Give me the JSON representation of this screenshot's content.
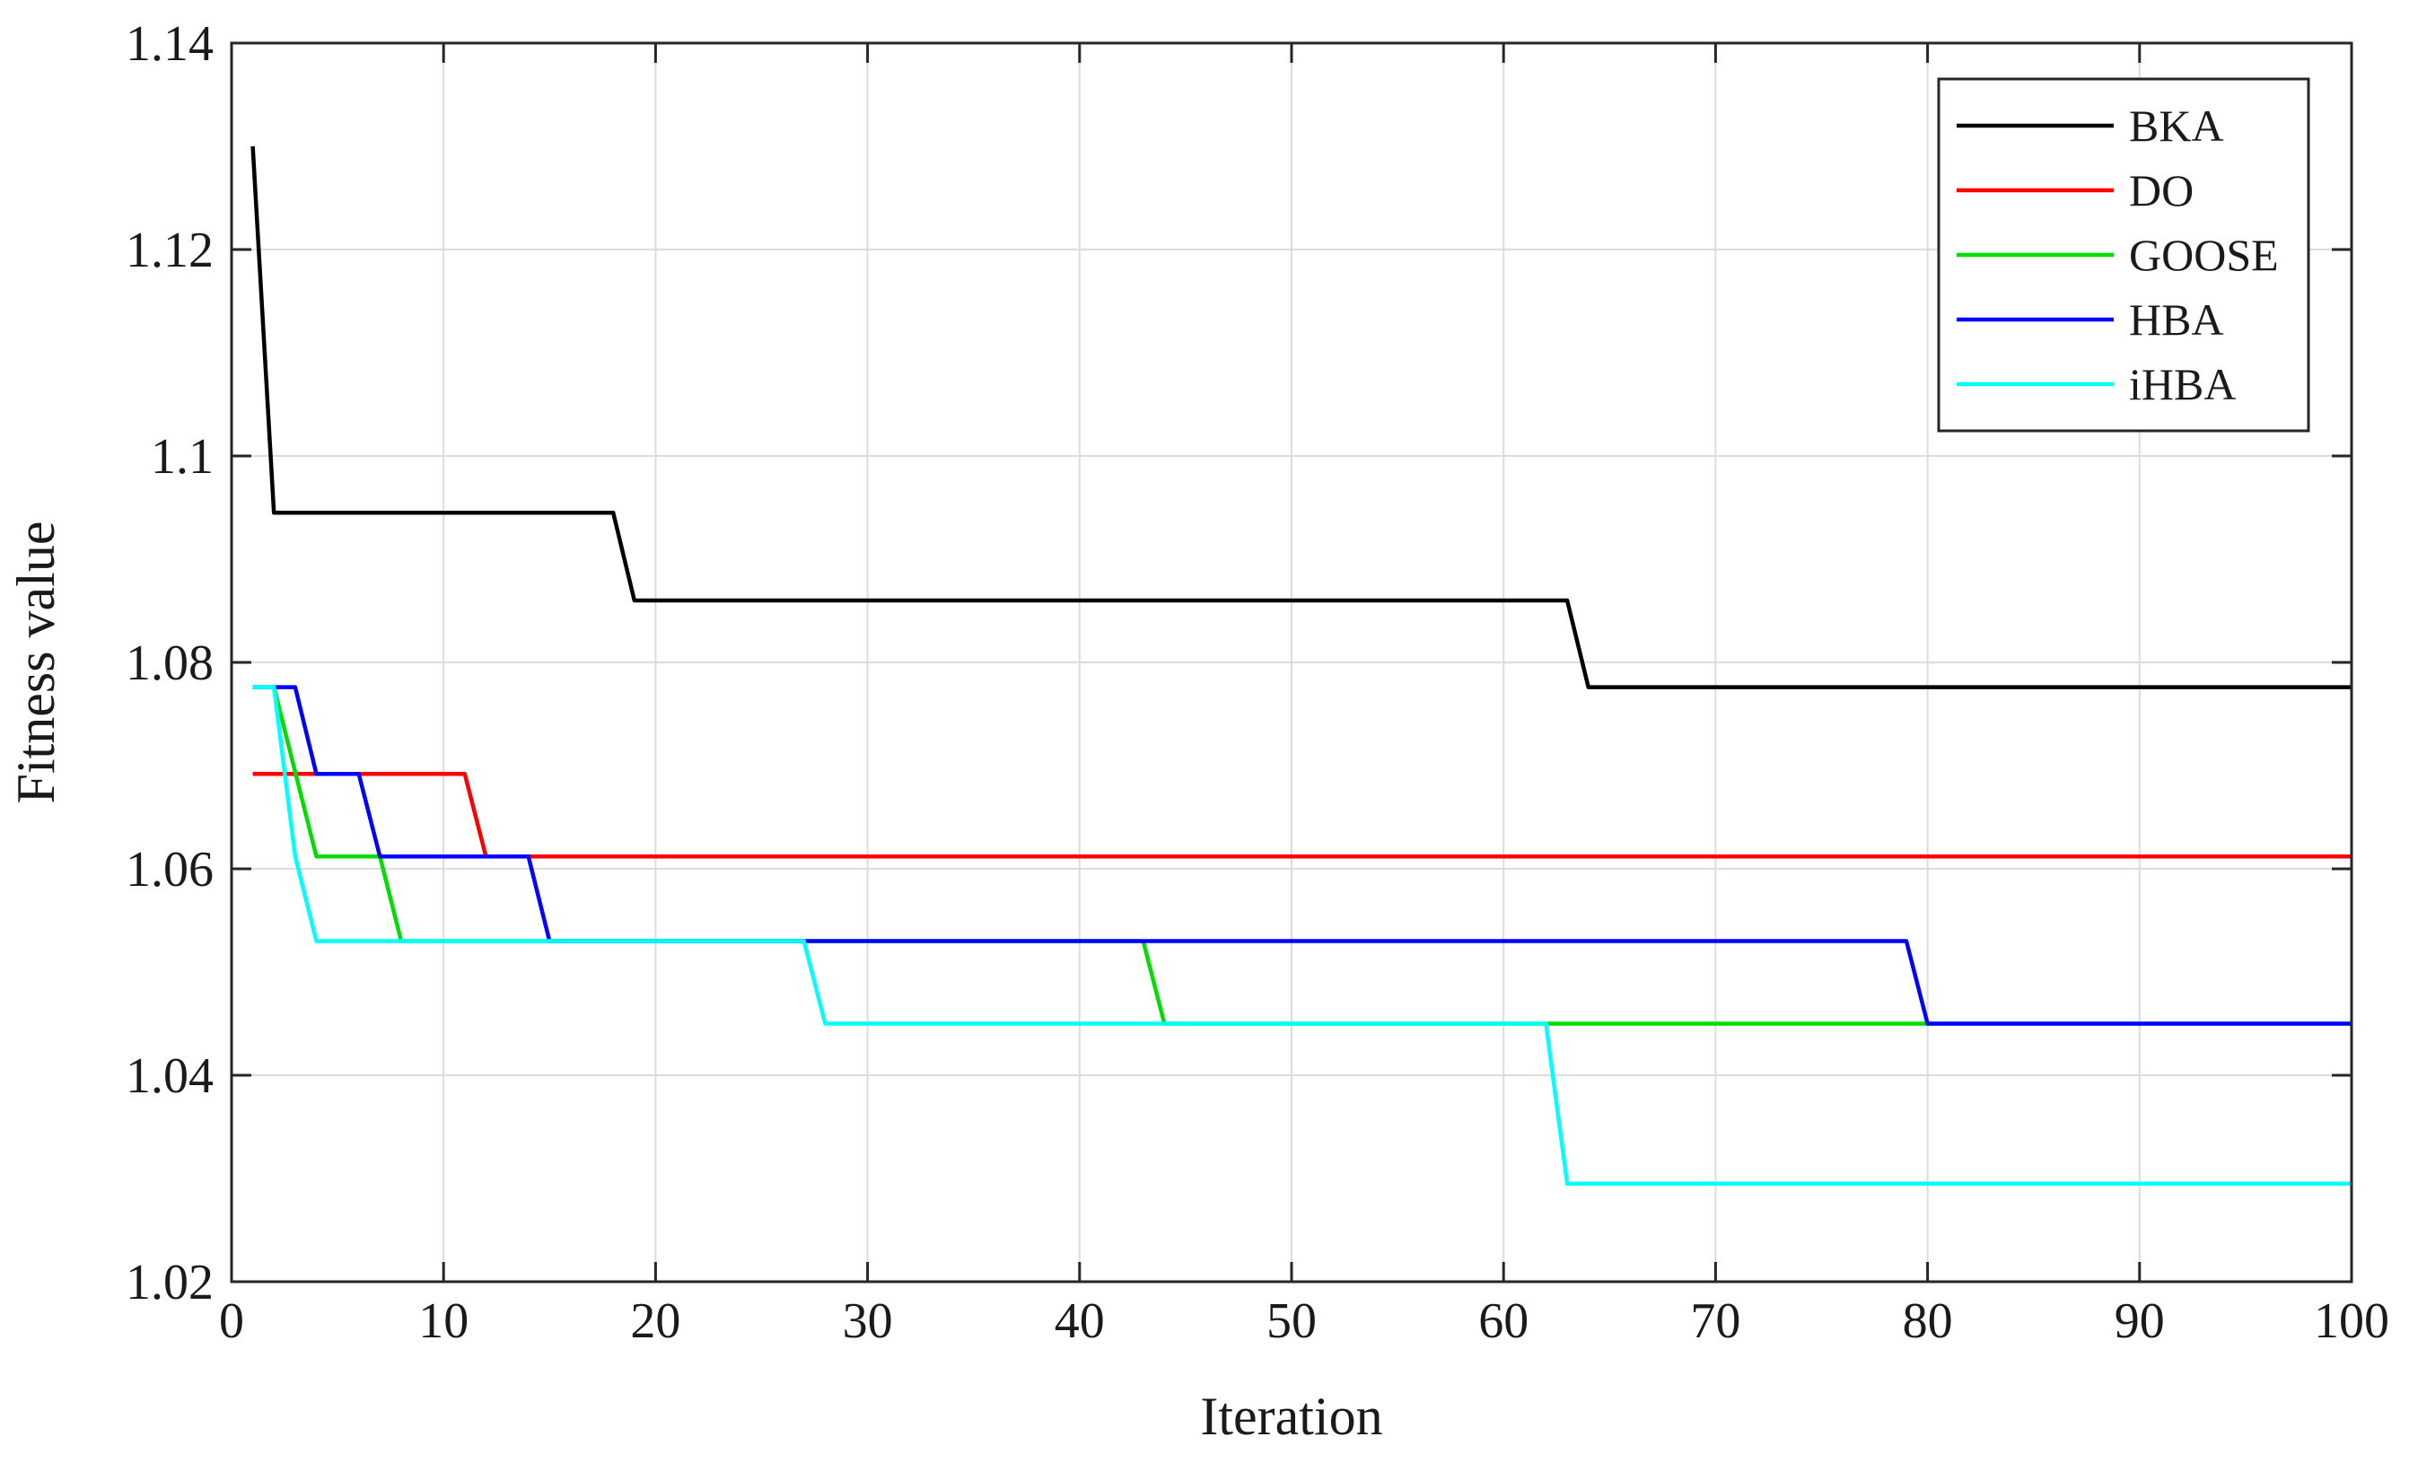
{
  "chart_data": {
    "type": "line",
    "xlabel": "Iteration",
    "ylabel": "Fitness value",
    "xlim": [
      0,
      100
    ],
    "ylim": [
      1.02,
      1.14
    ],
    "xticks": [
      0,
      10,
      20,
      30,
      40,
      50,
      60,
      70,
      80,
      90,
      100
    ],
    "yticks": [
      1.02,
      1.04,
      1.06,
      1.08,
      1.1,
      1.12,
      1.14
    ],
    "xtick_labels": [
      "0",
      "10",
      "20",
      "30",
      "40",
      "50",
      "60",
      "70",
      "80",
      "90",
      "100"
    ],
    "ytick_labels": [
      "1.02",
      "1.04",
      "1.06",
      "1.08",
      "1.1",
      "1.12",
      "1.14"
    ],
    "grid": true,
    "legend_position": "top-right",
    "series": [
      {
        "name": "BKA",
        "color": "#000000",
        "points": [
          [
            1,
            1.13
          ],
          [
            2,
            1.0945
          ],
          [
            18,
            1.0945
          ],
          [
            19,
            1.086
          ],
          [
            63,
            1.086
          ],
          [
            64,
            1.0776
          ],
          [
            100,
            1.0776
          ]
        ]
      },
      {
        "name": "DO",
        "color": "#ff0000",
        "points": [
          [
            1,
            1.0692
          ],
          [
            11,
            1.0692
          ],
          [
            12,
            1.0612
          ],
          [
            100,
            1.0612
          ]
        ]
      },
      {
        "name": "GOOSE",
        "color": "#00dd00",
        "points": [
          [
            1,
            1.0776
          ],
          [
            2,
            1.0776
          ],
          [
            4,
            1.0612
          ],
          [
            7,
            1.0612
          ],
          [
            8,
            1.053
          ],
          [
            43,
            1.053
          ],
          [
            44,
            1.045
          ],
          [
            80,
            1.045
          ],
          [
            100,
            1.045
          ]
        ]
      },
      {
        "name": "HBA",
        "color": "#0000ff",
        "points": [
          [
            1,
            1.0776
          ],
          [
            3,
            1.0776
          ],
          [
            4,
            1.0692
          ],
          [
            6,
            1.0692
          ],
          [
            7,
            1.0612
          ],
          [
            14,
            1.0612
          ],
          [
            15,
            1.053
          ],
          [
            79,
            1.053
          ],
          [
            80,
            1.045
          ],
          [
            100,
            1.045
          ]
        ]
      },
      {
        "name": "iHBA",
        "color": "#00ffff",
        "points": [
          [
            1,
            1.0776
          ],
          [
            2,
            1.0776
          ],
          [
            3,
            1.0612
          ],
          [
            4,
            1.053
          ],
          [
            27,
            1.053
          ],
          [
            28,
            1.045
          ],
          [
            62,
            1.045
          ],
          [
            63,
            1.0295
          ],
          [
            100,
            1.0295
          ]
        ]
      }
    ]
  }
}
